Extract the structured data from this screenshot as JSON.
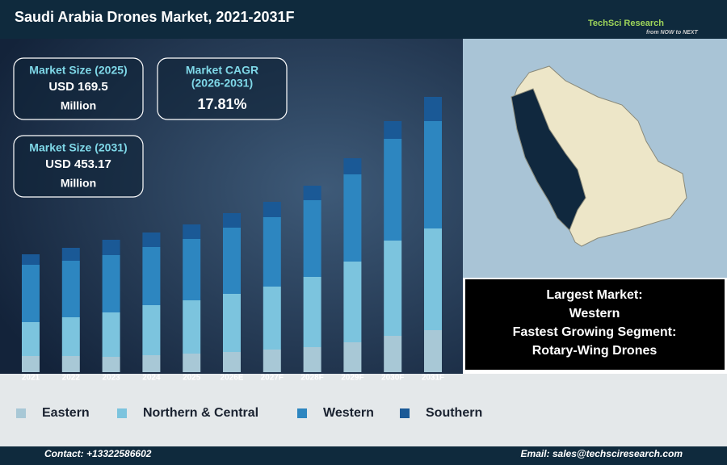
{
  "header": {
    "title": "Saudi Arabia Drones Market, 2021-2031F",
    "logo": "TechSci Research",
    "tagline": "from NOW to NEXT"
  },
  "info_boxes": [
    {
      "lines": [
        "Market Size (2025)"
      ],
      "value": "USD 169.5",
      "unit": "Million"
    },
    {
      "lines": [
        "Market CAGR",
        "(2026-2031)"
      ],
      "value": "17.81%"
    },
    {
      "lines": [
        "Market Size (2031)"
      ],
      "value": "USD 453.17",
      "unit": "Million"
    }
  ],
  "chart_data": {
    "type": "bar",
    "stacked": true,
    "categories": [
      "2021",
      "2022",
      "2023",
      "2024",
      "2025",
      "2026E",
      "2027F",
      "2028F",
      "2029F",
      "2030F",
      "2031F"
    ],
    "series": [
      {
        "name": "Eastern",
        "color": "#a8c8d6",
        "values": [
          20,
          20,
          19,
          21,
          23,
          25,
          28,
          31,
          37,
          45,
          52
        ]
      },
      {
        "name": "Northern & Central",
        "color": "#7cc4de",
        "values": [
          42,
          48,
          55,
          62,
          66,
          72,
          78,
          87,
          100,
          118,
          126
        ]
      },
      {
        "name": "Western",
        "color": "#2d86c0",
        "values": [
          71,
          70,
          71,
          72,
          76,
          82,
          86,
          95,
          108,
          126,
          133
        ]
      },
      {
        "name": "Southern",
        "color": "#1a5996",
        "values": [
          13,
          16,
          19,
          18,
          18,
          18,
          19,
          18,
          20,
          22,
          30
        ]
      }
    ],
    "ylim": [
      0,
      345
    ]
  },
  "highlight": {
    "lines": [
      "Largest Market:",
      "Western",
      "Fastest Growing Segment:",
      "Rotary-Wing Drones"
    ]
  },
  "footer": {
    "contact": "Contact: +13322586602",
    "email": "Email: sales@techsciresearch.com"
  }
}
